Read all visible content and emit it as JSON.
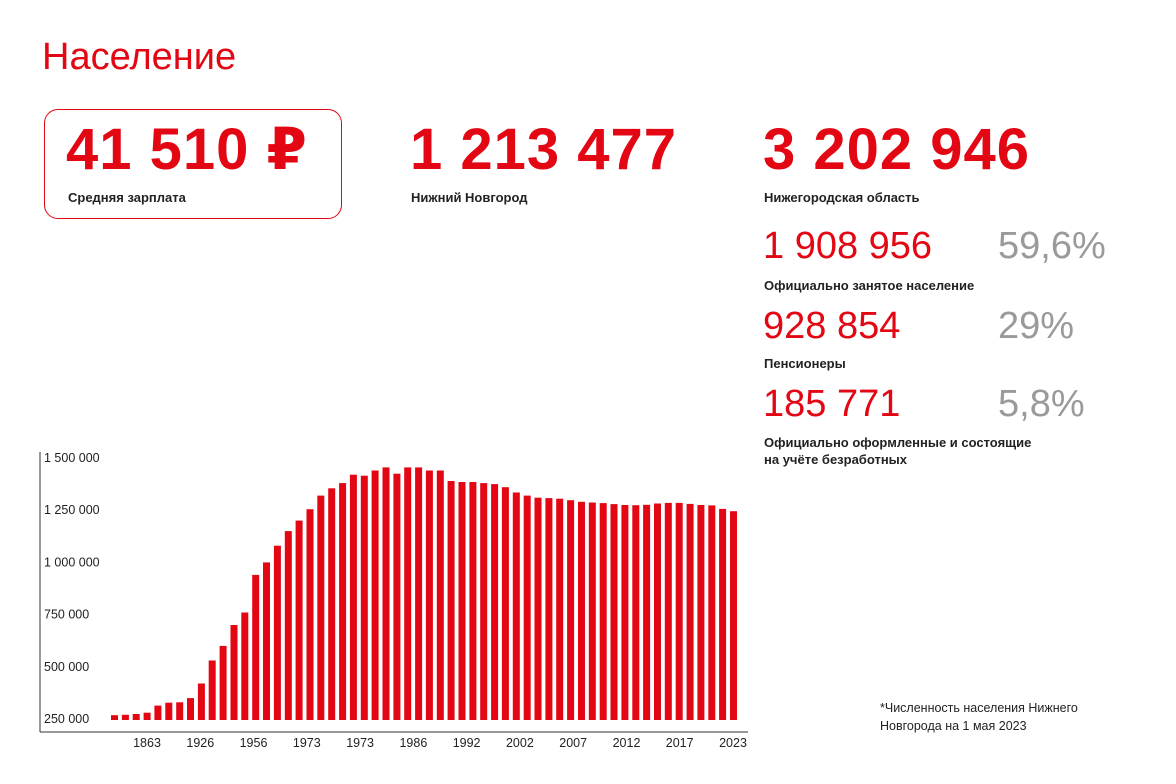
{
  "page_title": "Население",
  "kpis": {
    "salary": {
      "value": "41 510 ₽",
      "label": "Средняя зарплата"
    },
    "city": {
      "value": "1 213 477",
      "label": "Нижний Новгород"
    },
    "region": {
      "value": "3 202 946",
      "label": "Нижегородская область"
    }
  },
  "stats": [
    {
      "value": "1 908 956",
      "percent": "59,6%",
      "label": "Официально занятое население"
    },
    {
      "value": "928 854",
      "percent": "29%",
      "label": "Пенсионеры"
    },
    {
      "value": "185 771",
      "percent": "5,8%",
      "label": "Официально оформленные и  состоящие на учёте безработных"
    }
  ],
  "footnote": "*Численность населения Нижнего Новгорода на 1 мая 2023",
  "colors": {
    "accent": "#e30613",
    "muted": "#9a9a9a"
  },
  "chart_data": {
    "type": "bar",
    "title": "",
    "xlabel": "",
    "ylabel": "",
    "ylim": [
      250000,
      1500000
    ],
    "y_ticks": [
      "1 500 000",
      "1 250 000",
      "1 000 000",
      "750 000",
      "500 000",
      "250 000"
    ],
    "y_tick_values": [
      1500000,
      1250000,
      1000000,
      750000,
      500000,
      250000
    ],
    "x_tick_labels": [
      "1863",
      "1926",
      "1956",
      "1973",
      "1973",
      "1986",
      "1992",
      "2002",
      "2007",
      "2012",
      "2017",
      "2023"
    ],
    "grid": false,
    "series": [
      {
        "values": [
          268000,
          270000,
          274000,
          280000,
          314000,
          328000,
          330000,
          350000,
          420000,
          530000,
          600000,
          700000,
          760000,
          940000,
          1000000,
          1080000,
          1150000,
          1200000,
          1255000,
          1320000,
          1355000,
          1380000,
          1420000,
          1415000,
          1440000,
          1455000,
          1425000,
          1455000,
          1455000,
          1440000,
          1440000,
          1390000,
          1385000,
          1385000,
          1380000,
          1375000,
          1360000,
          1335000,
          1320000,
          1310000,
          1308000,
          1305000,
          1298000,
          1290000,
          1287000,
          1284000,
          1279000,
          1275000,
          1274000,
          1276000,
          1282000,
          1285000,
          1285000,
          1280000,
          1275000,
          1273000,
          1256000,
          1245000
        ]
      }
    ]
  }
}
